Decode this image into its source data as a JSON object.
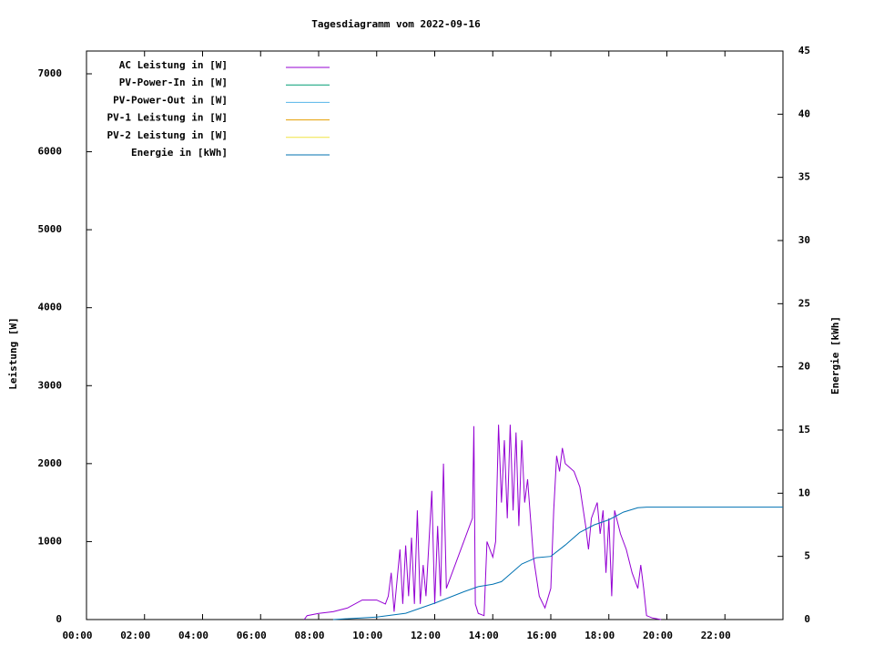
{
  "chart_data": {
    "type": "line",
    "title": "Tagesdiagramm vom 2022-09-16",
    "y_label": "Leistung [W]",
    "y2_label": "Energie [kWh]",
    "xlim": [
      0,
      24
    ],
    "xticks": [
      {
        "value": 0,
        "label": "00:00"
      },
      {
        "value": 2,
        "label": "02:00"
      },
      {
        "value": 4,
        "label": "04:00"
      },
      {
        "value": 6,
        "label": "06:00"
      },
      {
        "value": 8,
        "label": "08:00"
      },
      {
        "value": 10,
        "label": "10:00"
      },
      {
        "value": 12,
        "label": "12:00"
      },
      {
        "value": 14,
        "label": "14:00"
      },
      {
        "value": 16,
        "label": "16:00"
      },
      {
        "value": 18,
        "label": "18:00"
      },
      {
        "value": 20,
        "label": "20:00"
      },
      {
        "value": 22,
        "label": "22:00"
      }
    ],
    "ylim": [
      0,
      7292
    ],
    "yticks": [
      0,
      1000,
      2000,
      3000,
      4000,
      5000,
      6000,
      7000
    ],
    "y2lim": [
      0,
      45
    ],
    "y2ticks": [
      0,
      5,
      10,
      15,
      20,
      25,
      30,
      35,
      40,
      45
    ],
    "legend": "top-left",
    "series": [
      {
        "name": "AC Leistung in [W]",
        "color": "#9400d3",
        "x": [
          7.5,
          7.6,
          8.0,
          8.5,
          9.0,
          9.5,
          10.0,
          10.3,
          10.4,
          10.5,
          10.6,
          10.8,
          10.9,
          11.0,
          11.1,
          11.2,
          11.3,
          11.4,
          11.5,
          11.6,
          11.7,
          11.9,
          12.0,
          12.1,
          12.2,
          12.3,
          12.4,
          13.3,
          13.35,
          13.4,
          13.5,
          13.7,
          13.8,
          14.0,
          14.1,
          14.2,
          14.3,
          14.4,
          14.5,
          14.6,
          14.7,
          14.8,
          14.9,
          15.0,
          15.1,
          15.2,
          15.4,
          15.6,
          15.8,
          16.0,
          16.1,
          16.2,
          16.3,
          16.4,
          16.5,
          16.8,
          17.0,
          17.2,
          17.3,
          17.4,
          17.6,
          17.7,
          17.8,
          17.9,
          18.0,
          18.1,
          18.2,
          18.4,
          18.6,
          18.8,
          19.0,
          19.1,
          19.2,
          19.3,
          19.5,
          19.8
        ],
        "values": [
          0,
          50,
          80,
          100,
          150,
          250,
          250,
          200,
          300,
          600,
          100,
          900,
          200,
          950,
          300,
          1050,
          200,
          1400,
          200,
          700,
          300,
          1650,
          200,
          1200,
          300,
          2000,
          400,
          1300,
          2480,
          200,
          80,
          50,
          1000,
          800,
          1000,
          2500,
          1500,
          2300,
          1300,
          2500,
          1400,
          2400,
          1200,
          2300,
          1500,
          1800,
          800,
          300,
          150,
          400,
          1400,
          2100,
          1900,
          2200,
          2000,
          1900,
          1700,
          1200,
          900,
          1300,
          1500,
          1100,
          1400,
          600,
          1300,
          300,
          1400,
          1100,
          900,
          600,
          400,
          700,
          400,
          50,
          20,
          0
        ]
      },
      {
        "name": "PV-Power-In in [W]",
        "color": "#009e73",
        "x": [],
        "values": []
      },
      {
        "name": "PV-Power-Out in [W]",
        "color": "#56b4e9",
        "x": [],
        "values": []
      },
      {
        "name": "PV-1 Leistung in [W]",
        "color": "#e69f00",
        "x": [],
        "values": []
      },
      {
        "name": "PV-2 Leistung in [W]",
        "color": "#f0e442",
        "x": [],
        "values": []
      },
      {
        "name": "Energie in [kWh]",
        "color": "#0072b2",
        "axis": "y2",
        "x": [
          8.5,
          10,
          11,
          12,
          13,
          13.5,
          14,
          14.3,
          15,
          15.5,
          16,
          16.5,
          17,
          17.5,
          18,
          18.5,
          19,
          19.3,
          24
        ],
        "values": [
          0,
          0.2,
          0.5,
          1.3,
          2.2,
          2.6,
          2.8,
          3.0,
          4.4,
          4.9,
          5.0,
          5.9,
          6.9,
          7.5,
          7.9,
          8.5,
          8.85,
          8.9,
          8.9
        ]
      }
    ]
  }
}
